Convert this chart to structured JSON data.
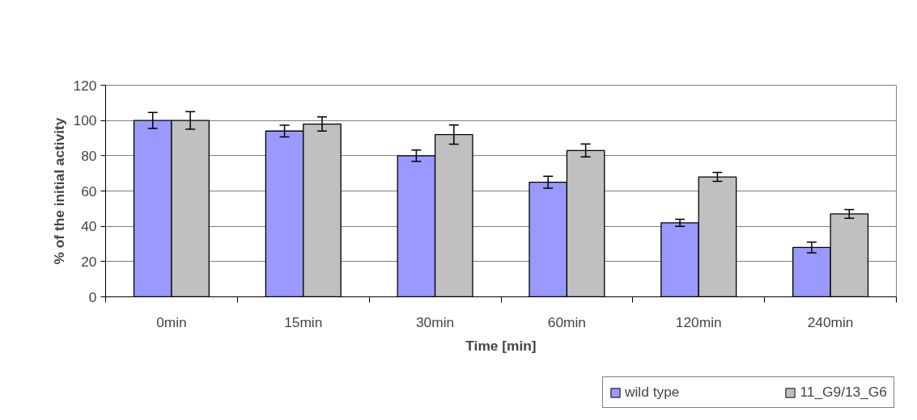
{
  "chart_data": {
    "type": "bar",
    "xlabel": "Time [min]",
    "ylabel": "% of the initial activity",
    "categories": [
      "0min",
      "15min",
      "30min",
      "60min",
      "120min",
      "240min"
    ],
    "series": [
      {
        "name": "wild type",
        "color": "#9999ff",
        "values": [
          100,
          94,
          80,
          65,
          42,
          28
        ],
        "errors": [
          4.5,
          3.3,
          3.2,
          3.4,
          2,
          3
        ]
      },
      {
        "name": "11_G9/13_G6",
        "color": "#c0c0c0",
        "values": [
          100,
          98,
          92,
          83,
          68,
          47
        ],
        "errors": [
          5,
          4,
          5.4,
          3.7,
          2.5,
          2.5
        ]
      }
    ],
    "ylim": [
      0,
      120
    ],
    "yticks": [
      0,
      20,
      40,
      60,
      80,
      100,
      120
    ],
    "grid": "y",
    "legend": "bottom right"
  }
}
